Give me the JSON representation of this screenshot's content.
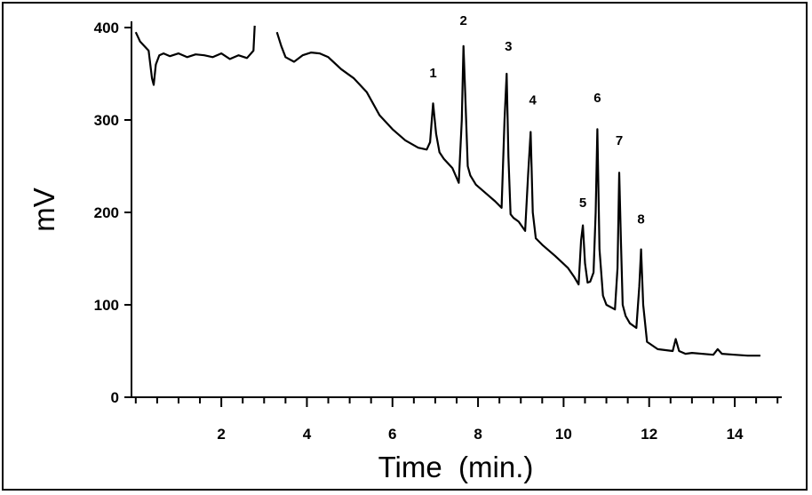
{
  "chart_data": {
    "type": "line",
    "title": "",
    "xlabel": "Time  (min.)",
    "ylabel": "mV",
    "xlim": [
      -0.1,
      15.1
    ],
    "ylim": [
      0,
      400
    ],
    "x_ticks": [
      2,
      4,
      6,
      8,
      10,
      12,
      14
    ],
    "y_ticks": [
      0,
      100,
      200,
      300,
      400
    ],
    "grid": false,
    "legend": "none",
    "line_color": "#000000",
    "series": [
      {
        "segments": [
          {
            "x": [
              0,
              0.1,
              0.2,
              0.3,
              0.38,
              0.42,
              0.47,
              0.55,
              0.65,
              0.8,
              1.0,
              1.2,
              1.4,
              1.6,
              1.8,
              2.0,
              2.2,
              2.4,
              2.6,
              2.75,
              2.78
            ],
            "y": [
              395,
              385,
              380,
              375,
              345,
              338,
              360,
              370,
              372,
              369,
              372,
              368,
              371,
              370,
              368,
              372,
              366,
              370,
              367,
              375,
              402
            ]
          },
          {
            "x": [
              3.3,
              3.4,
              3.5,
              3.7,
              3.9,
              4.1,
              4.3,
              4.5,
              4.8,
              5.1,
              5.4,
              5.7,
              6.0,
              6.3,
              6.6,
              6.8,
              6.88,
              6.95,
              7.02,
              7.1,
              7.2,
              7.4,
              7.55,
              7.62,
              7.66,
              7.7,
              7.76,
              7.82,
              7.95,
              8.2,
              8.4,
              8.55,
              8.62,
              8.67,
              8.71,
              8.76,
              8.83,
              8.95,
              9.1,
              9.17,
              9.23,
              9.28,
              9.35,
              9.5,
              9.8,
              10.1,
              10.25,
              10.35,
              10.41,
              10.45,
              10.5,
              10.56,
              10.62,
              10.7,
              10.75,
              10.79,
              10.84,
              10.92,
              11.0,
              11.2,
              11.26,
              11.3,
              11.34,
              11.38,
              11.45,
              11.55,
              11.7,
              11.77,
              11.81,
              11.86,
              11.95,
              12.2,
              12.55,
              12.62,
              12.7,
              12.85,
              13.0,
              13.5,
              13.6,
              13.7,
              14.0,
              14.3,
              14.6
            ],
            "y": [
              395,
              380,
              368,
              363,
              370,
              373,
              372,
              368,
              355,
              345,
              330,
              305,
              290,
              278,
              270,
              268,
              276,
              318,
              285,
              265,
              258,
              248,
              232,
              300,
              380,
              330,
              250,
              240,
              230,
              220,
              212,
              205,
              300,
              350,
              260,
              198,
              194,
              190,
              180,
              240,
              287,
              200,
              172,
              165,
              153,
              140,
              130,
              122,
              170,
              186,
              145,
              124,
              125,
              135,
              200,
              290,
              160,
              110,
              100,
              95,
              140,
              243,
              170,
              100,
              88,
              80,
              75,
              120,
              160,
              100,
              60,
              52,
              50,
              63,
              50,
              47,
              48,
              46,
              52,
              47,
              46,
              45,
              45
            ]
          }
        ]
      }
    ],
    "annotations": [
      {
        "text": "1",
        "x": 6.95,
        "y": 346
      },
      {
        "text": "2",
        "x": 7.66,
        "y": 403
      },
      {
        "text": "3",
        "x": 8.71,
        "y": 375
      },
      {
        "text": "4",
        "x": 9.28,
        "y": 317
      },
      {
        "text": "5",
        "x": 10.45,
        "y": 206
      },
      {
        "text": "6",
        "x": 10.79,
        "y": 319
      },
      {
        "text": "7",
        "x": 11.3,
        "y": 273
      },
      {
        "text": "8",
        "x": 11.81,
        "y": 188
      }
    ]
  }
}
